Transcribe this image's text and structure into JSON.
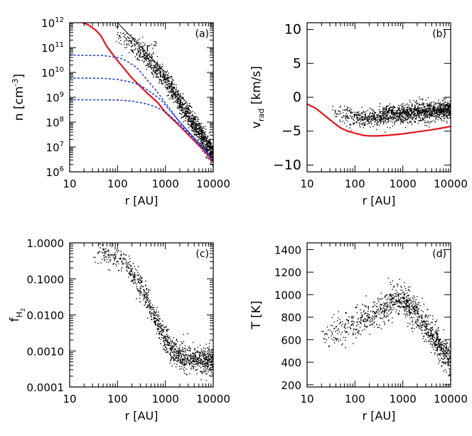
{
  "chart_data": [
    {
      "panel": "(a)",
      "type": "scatter",
      "xlabel": "r [AU]",
      "ylabel_base": "n [cm",
      "ylabel_sup": "-3",
      "ylabel_end": "]",
      "xscale": "log",
      "yscale": "log",
      "xlim": [
        10,
        10000
      ],
      "ylim": [
        1000000,
        1000000000000
      ],
      "x_ticks": [
        "10",
        "100",
        "1000",
        "10000"
      ],
      "y_ticks": [
        {
          "v": 1000000,
          "exp": "6"
        },
        {
          "v": 10000000,
          "exp": "7"
        },
        {
          "v": 100000000,
          "exp": "8"
        },
        {
          "v": 1000000000,
          "exp": "9"
        },
        {
          "v": 10000000000,
          "exp": "10"
        },
        {
          "v": 100000000000,
          "exp": "11"
        },
        {
          "v": 1000000000000,
          "exp": "12"
        }
      ],
      "slope_label_base": "r",
      "slope_label_sup": "-2",
      "slope_line": {
        "x": [
          100,
          1000
        ],
        "y": [
          1000000000000,
          10000000000
        ]
      },
      "series": [
        {
          "kind": "red-line",
          "color": "#e8141e",
          "x": [
            10,
            17,
            25,
            35,
            45,
            60,
            100,
            200,
            400,
            700,
            1000,
            2000,
            4000,
            7000,
            10000
          ],
          "y": [
            1300000000000.0,
            1100000000000.0,
            800000000000.0,
            500000000000.0,
            300000000000.0,
            110000000000.0,
            30000000000.0,
            6000000000.0,
            1600000000.0,
            600000000.0,
            250000000.0,
            70000000.0,
            18000000.0,
            6000000.0,
            2500000.0
          ]
        },
        {
          "kind": "blue-dash",
          "color": "#1e3cdc",
          "x": [
            10,
            50,
            100,
            150,
            250,
            400,
            700,
            1000,
            2000,
            4000,
            7000,
            10000
          ],
          "y": [
            50000000000.0,
            48000000000.0,
            40000000000.0,
            30000000000.0,
            16000000000.0,
            5500000000.0,
            1500000000.0,
            600000000.0,
            100000000.0,
            23000000.0,
            7000000.0,
            3000000.0
          ]
        },
        {
          "kind": "blue-dash",
          "color": "#1e3cdc",
          "x": [
            10,
            50,
            100,
            200,
            300,
            500,
            800,
            1000,
            2000,
            4000,
            7000,
            10000
          ],
          "y": [
            6000000000.0,
            5800000000.0,
            5200000000.0,
            4000000000.0,
            3000000000.0,
            1600000000.0,
            800000000.0,
            480000000.0,
            100000000.0,
            23000000.0,
            7000000.0,
            3000000.0
          ]
        },
        {
          "kind": "blue-dash",
          "color": "#1e3cdc",
          "x": [
            10,
            100,
            200,
            400,
            600,
            800,
            1000,
            2000,
            4000,
            7000,
            10000
          ],
          "y": [
            800000000.0,
            780000000.0,
            700000000.0,
            550000000.0,
            420000000.0,
            330000000.0,
            260000000.0,
            80000000.0,
            21000000.0,
            6500000.0,
            3000000.0
          ]
        }
      ],
      "scatter": {
        "xmin": 80,
        "xmax": 10000,
        "n": 1300,
        "y_at": {
          "x": [
            80,
            150,
            300,
            600,
            1000,
            2000,
            4000,
            10000
          ],
          "y": [
            600000000000.0,
            200000000000.0,
            70000000000.0,
            15000000000.0,
            5000000000.0,
            600000000.0,
            80000000.0,
            5000000.0
          ]
        },
        "spread_dex": 0.22
      }
    },
    {
      "panel": "(b)",
      "type": "scatter",
      "xlabel": "r [AU]",
      "ylabel_base": "v",
      "ylabel_sub": "rad",
      "ylabel_end": " [km/s]",
      "xscale": "log",
      "yscale": "linear",
      "xlim": [
        10,
        10000
      ],
      "ylim": [
        -11,
        11
      ],
      "x_ticks": [
        "10",
        "100",
        "1000",
        "10000"
      ],
      "y_ticks": [
        "10",
        "5",
        "0",
        "−5",
        "−10"
      ],
      "y_tick_values": [
        10,
        5,
        0,
        -5,
        -10
      ],
      "series": [
        {
          "kind": "red-line",
          "color": "#e8141e",
          "x": [
            10,
            15,
            20,
            30,
            40,
            50,
            70,
            100,
            150,
            200,
            300,
            500,
            1000,
            2000,
            4000,
            7000,
            10000
          ],
          "y": [
            -1.0,
            -1.6,
            -2.3,
            -3.3,
            -4.0,
            -4.5,
            -5.0,
            -5.3,
            -5.6,
            -5.7,
            -5.7,
            -5.6,
            -5.4,
            -5.1,
            -4.8,
            -4.5,
            -4.3
          ]
        }
      ],
      "scatter": {
        "xmin": 30,
        "xmax": 10000,
        "n": 1400,
        "y_at": {
          "x": [
            30,
            60,
            100,
            200,
            400,
            800,
            1500,
            3000,
            10000
          ],
          "y": [
            -1.5,
            -2.5,
            -3.0,
            -3.0,
            -2.7,
            -2.4,
            -2.2,
            -2.0,
            -1.8
          ]
        },
        "spread": 0.7
      }
    },
    {
      "panel": "(c)",
      "type": "scatter",
      "xlabel": "r [AU]",
      "ylabel_base": "f",
      "ylabel_sub": "H",
      "ylabel_subsub": "2",
      "xscale": "log",
      "yscale": "log",
      "xlim": [
        10,
        10000
      ],
      "ylim": [
        0.0001,
        1.0
      ],
      "x_ticks": [
        "10",
        "100",
        "1000",
        "10000"
      ],
      "y_ticks": [
        "1.0000",
        "0.1000",
        "0.0100",
        "0.0010",
        "0.0001"
      ],
      "y_tick_values": [
        1.0,
        0.1,
        0.01,
        0.001,
        0.0001
      ],
      "scatter": {
        "xmin": 30,
        "xmax": 10000,
        "n": 1100,
        "y_at": {
          "x": [
            30,
            80,
            150,
            250,
            400,
            600,
            900,
            1300,
            2000,
            4000,
            10000
          ],
          "y": [
            0.5,
            0.45,
            0.25,
            0.1,
            0.03,
            0.008,
            0.0025,
            0.0011,
            0.0007,
            0.0006,
            0.00055
          ]
        },
        "spread_dex": 0.18
      }
    },
    {
      "panel": "(d)",
      "type": "scatter",
      "xlabel": "r [AU]",
      "ylabel_base": "T [K]",
      "xscale": "log",
      "yscale": "linear",
      "xlim": [
        10,
        10000
      ],
      "ylim": [
        180,
        1460
      ],
      "x_ticks": [
        "10",
        "100",
        "1000",
        "10000"
      ],
      "y_ticks": [
        "1400",
        "1200",
        "1000",
        "800",
        "600",
        "400",
        "200"
      ],
      "y_tick_values": [
        1400,
        1200,
        1000,
        800,
        600,
        400,
        200
      ],
      "scatter": {
        "xmin": 18,
        "xmax": 10000,
        "n": 1100,
        "y_at": {
          "x": [
            18,
            40,
            100,
            300,
            600,
            1000,
            1500,
            2500,
            4000,
            7000,
            10000
          ],
          "y": [
            620,
            680,
            750,
            850,
            950,
            960,
            880,
            760,
            640,
            500,
            400
          ]
        },
        "spread": 70
      }
    }
  ]
}
